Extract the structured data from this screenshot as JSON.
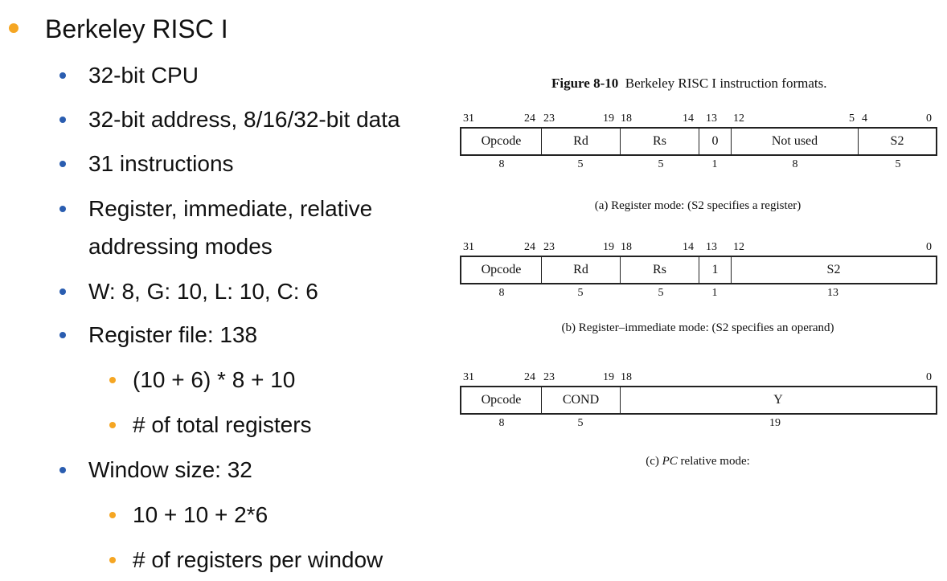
{
  "bullets": {
    "b0": "Berkeley RISC I",
    "b1": "32-bit CPU",
    "b2": "32-bit address, 8/16/32-bit data",
    "b3": "31 instructions",
    "b4a": "Register, immediate, relative",
    "b4b": "addressing modes",
    "b5": "W: 8, G: 10, L: 10, C: 6",
    "b6": "Register file: 138",
    "b6a": "(10 + 6) * 8 + 10",
    "b6b": "# of total registers",
    "b7": "Window size: 32",
    "b7a": "10 + 10 + 2*6",
    "b7b": "# of registers per window"
  },
  "figure": {
    "label": "Figure 8-10",
    "title": "Berkeley RISC I instruction formats.",
    "formats": [
      {
        "bits": [
          "31",
          "24",
          "23",
          "19",
          "18",
          "14",
          "13",
          "12",
          "5",
          "4",
          "0"
        ],
        "fields": [
          "Opcode",
          "Rd",
          "Rs",
          "0",
          "Not used",
          "S2"
        ],
        "widths": [
          "8",
          "5",
          "5",
          "1",
          "8",
          "5"
        ],
        "caption": "(a) Register mode: (S2 specifies a register)"
      },
      {
        "bits": [
          "31",
          "24",
          "23",
          "19",
          "18",
          "14",
          "13",
          "12",
          "0"
        ],
        "fields": [
          "Opcode",
          "Rd",
          "Rs",
          "1",
          "S2"
        ],
        "widths": [
          "8",
          "5",
          "5",
          "1",
          "13"
        ],
        "caption": "(b) Register–immediate mode: (S2 specifies an operand)"
      },
      {
        "bits": [
          "31",
          "24",
          "23",
          "19",
          "18",
          "0"
        ],
        "fields": [
          "Opcode",
          "COND",
          "Y"
        ],
        "widths": [
          "8",
          "5",
          "19"
        ],
        "caption_prefix": "(c) ",
        "caption_italic": "PC",
        "caption_suffix": " relative mode:"
      }
    ]
  },
  "colors": {
    "bullet_l1": "#f5a623",
    "bullet_l2": "#2a5db0",
    "bullet_l3": "#f5a623"
  }
}
